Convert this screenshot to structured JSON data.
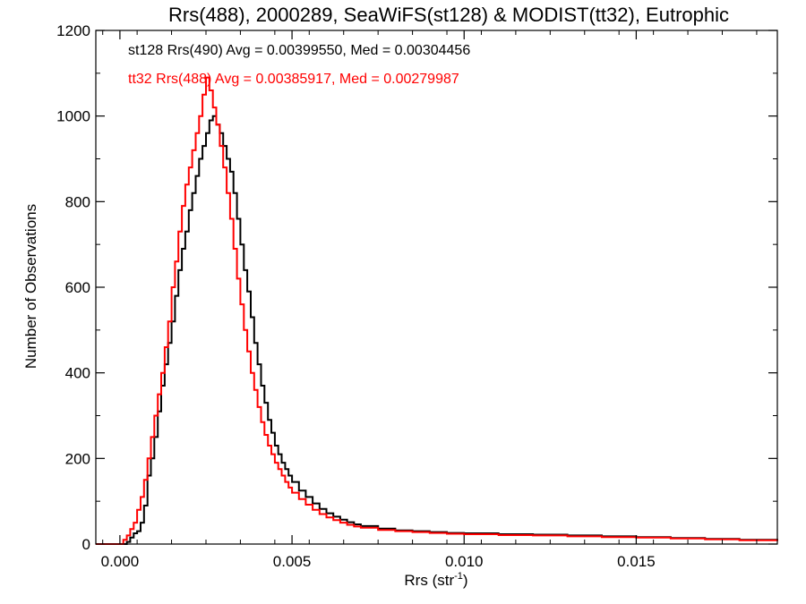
{
  "chart_data": {
    "type": "line",
    "step": true,
    "title": "Rrs(488), 2000289, SeaWiFS(st128) & MODIST(tt32), Eutrophic",
    "xlabel": "Rrs (str",
    "xlabel_sup": "-1",
    "xlabel_close": ")",
    "ylabel": "Number of Observations",
    "xlim": [
      -0.0007,
      0.0191
    ],
    "ylim": [
      0,
      1200
    ],
    "xticks": [
      0.0,
      0.005,
      0.01,
      0.015
    ],
    "xtick_labels": [
      "0.000",
      "0.005",
      "0.010",
      "0.015"
    ],
    "yticks": [
      0,
      200,
      400,
      600,
      800,
      1000,
      1200
    ],
    "ytick_labels": [
      "0",
      "200",
      "400",
      "600",
      "800",
      "1000",
      "1200"
    ],
    "legend_position": "top-left",
    "series": [
      {
        "color": "#000000",
        "annotation": "st128 Rrs(490) Avg = 0.00399550, Med = 0.00304456",
        "points": [
          [
            -0.0007,
            0
          ],
          [
            0.0001,
            0
          ],
          [
            0.0002,
            5
          ],
          [
            0.0003,
            15
          ],
          [
            0.0004,
            25
          ],
          [
            0.0005,
            30
          ],
          [
            0.0006,
            50
          ],
          [
            0.0007,
            90
          ],
          [
            0.0008,
            160
          ],
          [
            0.0009,
            200
          ],
          [
            0.001,
            250
          ],
          [
            0.0011,
            310
          ],
          [
            0.0012,
            370
          ],
          [
            0.0013,
            420
          ],
          [
            0.0014,
            470
          ],
          [
            0.0015,
            520
          ],
          [
            0.0016,
            580
          ],
          [
            0.0017,
            640
          ],
          [
            0.0018,
            690
          ],
          [
            0.0019,
            730
          ],
          [
            0.002,
            780
          ],
          [
            0.0021,
            820
          ],
          [
            0.0022,
            860
          ],
          [
            0.0023,
            900
          ],
          [
            0.0024,
            930
          ],
          [
            0.0025,
            960
          ],
          [
            0.0026,
            990
          ],
          [
            0.0027,
            1000
          ],
          [
            0.0028,
            980
          ],
          [
            0.0029,
            960
          ],
          [
            0.003,
            930
          ],
          [
            0.0031,
            900
          ],
          [
            0.0032,
            870
          ],
          [
            0.0033,
            820
          ],
          [
            0.0034,
            760
          ],
          [
            0.0035,
            700
          ],
          [
            0.0036,
            640
          ],
          [
            0.0037,
            590
          ],
          [
            0.0038,
            530
          ],
          [
            0.0039,
            470
          ],
          [
            0.004,
            420
          ],
          [
            0.0041,
            370
          ],
          [
            0.0042,
            330
          ],
          [
            0.0043,
            290
          ],
          [
            0.0044,
            260
          ],
          [
            0.0045,
            230
          ],
          [
            0.0046,
            210
          ],
          [
            0.0047,
            190
          ],
          [
            0.0048,
            175
          ],
          [
            0.0049,
            160
          ],
          [
            0.005,
            145
          ],
          [
            0.0052,
            125
          ],
          [
            0.0054,
            110
          ],
          [
            0.0056,
            95
          ],
          [
            0.0058,
            82
          ],
          [
            0.006,
            72
          ],
          [
            0.0062,
            64
          ],
          [
            0.0064,
            57
          ],
          [
            0.0066,
            51
          ],
          [
            0.0068,
            46
          ],
          [
            0.007,
            42
          ],
          [
            0.0075,
            36
          ],
          [
            0.008,
            32
          ],
          [
            0.0085,
            30
          ],
          [
            0.009,
            28
          ],
          [
            0.0095,
            26
          ],
          [
            0.01,
            25
          ],
          [
            0.011,
            23
          ],
          [
            0.012,
            22
          ],
          [
            0.013,
            20
          ],
          [
            0.014,
            18
          ],
          [
            0.015,
            16
          ],
          [
            0.016,
            14
          ],
          [
            0.017,
            12
          ],
          [
            0.018,
            10
          ],
          [
            0.0191,
            8
          ]
        ]
      },
      {
        "color": "#ff0000",
        "annotation": "tt32 Rrs(488) Avg = 0.00385917, Med = 0.00279987",
        "points": [
          [
            -0.0007,
            0
          ],
          [
            0.0,
            0
          ],
          [
            0.0001,
            10
          ],
          [
            0.0002,
            20
          ],
          [
            0.0003,
            35
          ],
          [
            0.0004,
            50
          ],
          [
            0.0005,
            80
          ],
          [
            0.0006,
            110
          ],
          [
            0.0007,
            150
          ],
          [
            0.0008,
            200
          ],
          [
            0.0009,
            250
          ],
          [
            0.001,
            300
          ],
          [
            0.0011,
            350
          ],
          [
            0.0012,
            400
          ],
          [
            0.0013,
            460
          ],
          [
            0.0014,
            520
          ],
          [
            0.0015,
            600
          ],
          [
            0.0016,
            660
          ],
          [
            0.0017,
            730
          ],
          [
            0.0018,
            790
          ],
          [
            0.0019,
            840
          ],
          [
            0.002,
            880
          ],
          [
            0.0021,
            920
          ],
          [
            0.0022,
            960
          ],
          [
            0.0023,
            1000
          ],
          [
            0.0024,
            1050
          ],
          [
            0.0025,
            1090
          ],
          [
            0.0026,
            1060
          ],
          [
            0.0027,
            1020
          ],
          [
            0.0028,
            980
          ],
          [
            0.0029,
            930
          ],
          [
            0.003,
            880
          ],
          [
            0.0031,
            820
          ],
          [
            0.0032,
            760
          ],
          [
            0.0033,
            690
          ],
          [
            0.0034,
            620
          ],
          [
            0.0035,
            560
          ],
          [
            0.0036,
            500
          ],
          [
            0.0037,
            450
          ],
          [
            0.0038,
            400
          ],
          [
            0.0039,
            360
          ],
          [
            0.004,
            320
          ],
          [
            0.0041,
            285
          ],
          [
            0.0042,
            255
          ],
          [
            0.0043,
            230
          ],
          [
            0.0044,
            210
          ],
          [
            0.0045,
            190
          ],
          [
            0.0046,
            175
          ],
          [
            0.0047,
            160
          ],
          [
            0.0048,
            145
          ],
          [
            0.0049,
            132
          ],
          [
            0.005,
            120
          ],
          [
            0.0052,
            105
          ],
          [
            0.0054,
            92
          ],
          [
            0.0056,
            80
          ],
          [
            0.0058,
            70
          ],
          [
            0.006,
            62
          ],
          [
            0.0062,
            56
          ],
          [
            0.0064,
            50
          ],
          [
            0.0066,
            45
          ],
          [
            0.0068,
            41
          ],
          [
            0.007,
            38
          ],
          [
            0.0075,
            33
          ],
          [
            0.008,
            30
          ],
          [
            0.0085,
            28
          ],
          [
            0.009,
            26
          ],
          [
            0.0095,
            24
          ],
          [
            0.01,
            23
          ],
          [
            0.011,
            21
          ],
          [
            0.012,
            20
          ],
          [
            0.013,
            18
          ],
          [
            0.014,
            16
          ],
          [
            0.015,
            15
          ],
          [
            0.016,
            13
          ],
          [
            0.017,
            11
          ],
          [
            0.018,
            9
          ],
          [
            0.0191,
            7
          ]
        ]
      }
    ]
  }
}
